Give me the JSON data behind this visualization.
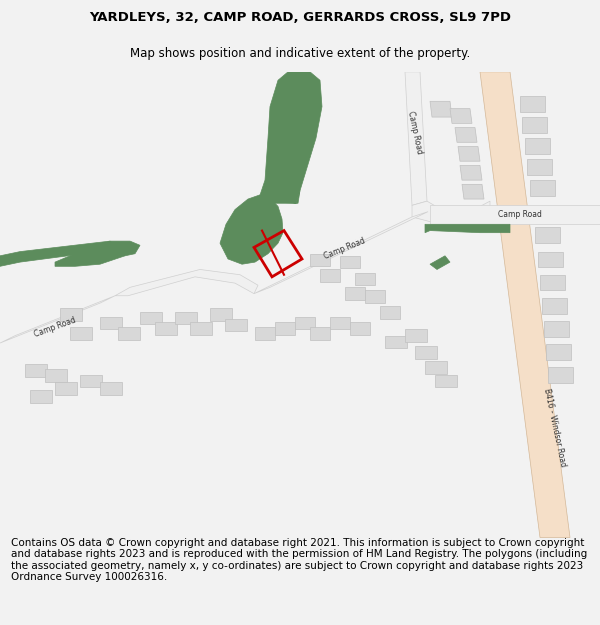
{
  "title_line1": "YARDLEYS, 32, CAMP ROAD, GERRARDS CROSS, SL9 7PD",
  "title_line2": "Map shows position and indicative extent of the property.",
  "footer": "Contains OS data © Crown copyright and database right 2021. This information is subject to Crown copyright and database rights 2023 and is reproduced with the permission of HM Land Registry. The polygons (including the associated geometry, namely x, y co-ordinates) are subject to Crown copyright and database rights 2023 Ordnance Survey 100026316.",
  "bg_color": "#f2f2f2",
  "map_bg": "#ffffff",
  "green_color": "#5c8c5c",
  "road_fill": "#f5dfc8",
  "road_edge": "#d4b898",
  "building_fill": "#d8d8d8",
  "building_edge": "#c0c0c0",
  "road_white_fill": "#f0f0f0",
  "road_white_edge": "#d0d0d0",
  "red_color": "#cc0000",
  "title_fontsize": 9.5,
  "subtitle_fontsize": 8.5,
  "footer_fontsize": 7.5,
  "label_fontsize": 5.5
}
